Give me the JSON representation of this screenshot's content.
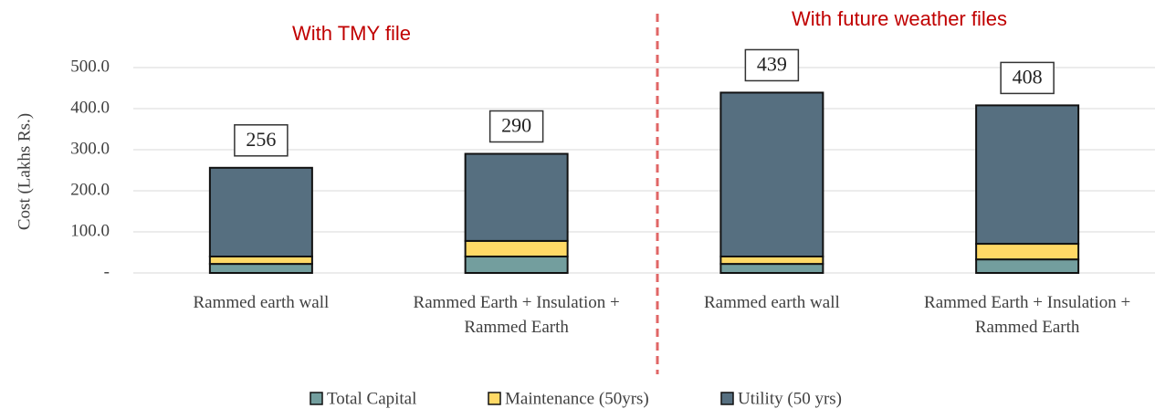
{
  "chart_data": {
    "type": "stacked_bar",
    "annotations": [
      "With TMY file",
      "With future weather files"
    ],
    "y_label": "Cost (Lakhs Rs.)",
    "categories": [
      "Rammed earth wall",
      "Rammed Earth + Insulation + Rammed Earth",
      "Rammed earth wall",
      "Rammed Earth + Insulation + Rammed Earth"
    ],
    "series": [
      {
        "name": "Total Capital",
        "color": "#739e9e",
        "values": [
          22,
          40,
          22,
          33
        ]
      },
      {
        "name": "Maintenance (50yrs)",
        "color": "#ffd966",
        "values": [
          18,
          38,
          18,
          38
        ]
      },
      {
        "name": "Utility (50 yrs)",
        "color": "#566f80",
        "values": [
          216,
          212,
          399,
          337
        ]
      }
    ],
    "totals": [
      256,
      290,
      439,
      408
    ],
    "ylim": [
      0,
      500
    ],
    "yticks": [
      {
        "value": 0,
        "label": "-"
      },
      {
        "value": 100,
        "label": "100.0"
      },
      {
        "value": 200,
        "label": "200.0"
      },
      {
        "value": 300,
        "label": "300.0"
      },
      {
        "value": 400,
        "label": "400.0"
      },
      {
        "value": 500,
        "label": "500.0"
      }
    ],
    "grid": true
  }
}
